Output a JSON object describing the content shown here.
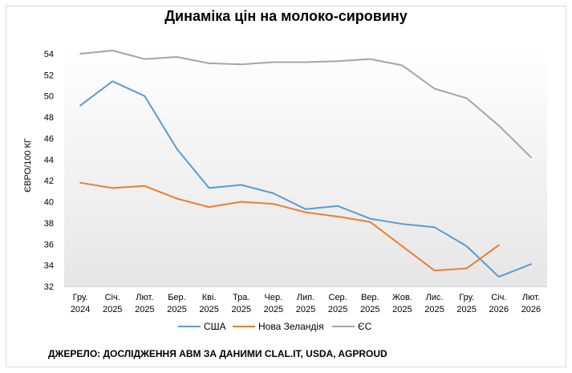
{
  "chart_data": {
    "type": "line",
    "title": "Динаміка цін на молоко-сировину",
    "ylabel": "ЄВРО/100 КГ",
    "xlabel": "",
    "ylim": [
      32,
      54
    ],
    "yticks": [
      32,
      34,
      36,
      38,
      40,
      42,
      44,
      46,
      48,
      50,
      52,
      54
    ],
    "categories": [
      [
        "Гру.",
        "2024"
      ],
      [
        "Січ.",
        "2025"
      ],
      [
        "Лют.",
        "2025"
      ],
      [
        "Бер.",
        "2025"
      ],
      [
        "Кві.",
        "2025"
      ],
      [
        "Тра.",
        "2025"
      ],
      [
        "Чер.",
        "2025"
      ],
      [
        "Лип.",
        "2025"
      ],
      [
        "Сер.",
        "2025"
      ],
      [
        "Вер.",
        "2025"
      ],
      [
        "Жов.",
        "2025"
      ],
      [
        "Лис.",
        "2025"
      ],
      [
        "Гру.",
        "2025"
      ],
      [
        "Січ.",
        "2026"
      ],
      [
        "Лют.",
        "2026"
      ]
    ],
    "series": [
      {
        "name": "США",
        "color": "#5b9bd5",
        "values": [
          49.1,
          51.4,
          50.0,
          45.0,
          41.3,
          41.6,
          40.8,
          39.3,
          39.6,
          38.4,
          37.9,
          37.6,
          35.8,
          32.9,
          34.1
        ]
      },
      {
        "name": "Нова Зеландія",
        "color": "#ed7d31",
        "values": [
          41.8,
          41.3,
          41.5,
          40.3,
          39.5,
          40.0,
          39.8,
          39.0,
          38.6,
          38.1,
          35.8,
          33.5,
          33.7,
          35.9,
          null
        ]
      },
      {
        "name": "ЄС",
        "color": "#a5a5a5",
        "values": [
          54.0,
          54.3,
          53.5,
          53.7,
          53.1,
          53.0,
          53.2,
          53.2,
          53.3,
          53.5,
          52.9,
          50.7,
          49.8,
          47.2,
          44.2
        ]
      }
    ],
    "grid": false,
    "legend": "bottom",
    "source": "ДЖЕРЕЛО: ДОСЛІДЖЕННЯ ABM ЗА ДАНИМИ CLAL.IT, USDA, AGPROUD"
  }
}
